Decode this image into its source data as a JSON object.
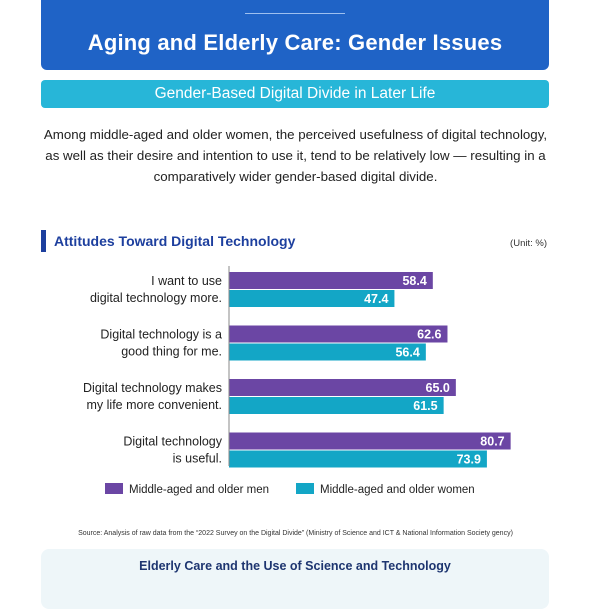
{
  "header": {
    "title": "Aging and Elderly Care: Gender Issues"
  },
  "subtitle": "Gender-Based Digital Divide in Later Life",
  "intro": "Among middle-aged and older women, the perceived usefulness of digital technology, as well as their desire and intention to use it, tend to be relatively low — resulting in a comparatively wider gender-based digital divide.",
  "section": {
    "title": "Attitudes Toward Digital Technology",
    "unit": "(Unit: %)"
  },
  "chart_data": {
    "type": "bar",
    "orientation": "horizontal",
    "categories": [
      [
        "I want to use",
        "digital technology more."
      ],
      [
        "Digital technology is a",
        "good thing for me."
      ],
      [
        "Digital technology makes",
        "my life more convenient."
      ],
      [
        "Digital technology",
        "is useful."
      ]
    ],
    "series": [
      {
        "name": "Middle-aged and older men",
        "color": "#6b46a4",
        "values": [
          58.4,
          62.6,
          65.0,
          80.7
        ],
        "labels": [
          "58.4",
          "62.6",
          "65.0",
          "80.7"
        ]
      },
      {
        "name": "Middle-aged and older women",
        "color": "#13a6c6",
        "values": [
          47.4,
          56.4,
          61.5,
          73.9
        ],
        "labels": [
          "47.4",
          "56.4",
          "61.5",
          "73.9"
        ]
      }
    ],
    "xlim": [
      0,
      100
    ],
    "grid": false,
    "legend": "bottom"
  },
  "source": "Source: Analysis of raw data from the “2022 Survey on the Digital Divide” (Ministry of Science and ICT & National Information Society gency)",
  "bottom": {
    "title": "Elderly Care and the Use of Science and Technology"
  }
}
